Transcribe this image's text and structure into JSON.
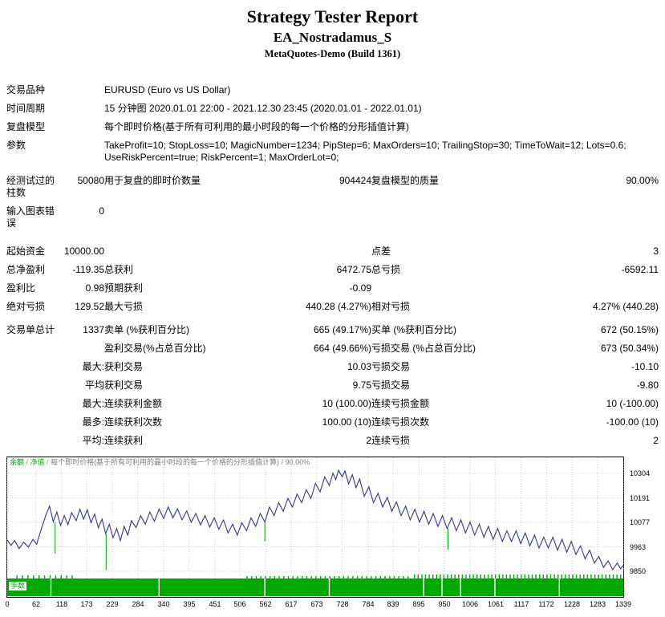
{
  "header": {
    "title": "Strategy Tester Report",
    "subtitle": "EA_Nostradamus_S",
    "build": "MetaQuotes-Demo (Build 1361)"
  },
  "table": {
    "rows": [
      {
        "cells": [
          {
            "t": "交易品种"
          },
          {
            "t": ""
          },
          {
            "t": "EURUSD (Euro vs US Dollar)",
            "s": 4
          }
        ]
      },
      {
        "cells": [
          {
            "t": "时间周期"
          },
          {
            "t": ""
          },
          {
            "t": "15 分钟图 2020.01.01 22:00 - 2021.12.30 23:45 (2020.01.01 - 2022.01.01)",
            "s": 4
          }
        ]
      },
      {
        "cells": [
          {
            "t": "复盘模型"
          },
          {
            "t": ""
          },
          {
            "t": "每个即时价格(基于所有可利用的最小时段的每一个价格的分形插值计算)",
            "s": 4
          }
        ]
      },
      {
        "cells": [
          {
            "t": "参数"
          },
          {
            "t": ""
          },
          {
            "t": "TakeProfit=10; StopLoss=10; MagicNumber=1234; PipStep=6; MaxOrders=10; TrailingStop=30; TimeToWait=12; Lots=0.6; UseRiskPercent=true; RiskPercent=1; MaxOrderLot=0;",
            "s": 4
          }
        ]
      },
      {
        "gap": "sm",
        "cells": [
          {
            "t": "经测试过的柱数"
          },
          {
            "t": "50080",
            "a": "r"
          },
          {
            "t": "用于复盘的即时价数量"
          },
          {
            "t": "904424",
            "a": "r"
          },
          {
            "t": "复盘模型的质量"
          },
          {
            "t": "90.00%",
            "a": "r"
          }
        ]
      },
      {
        "cells": [
          {
            "t": "输入图表错误"
          },
          {
            "t": "0",
            "a": "r"
          },
          {
            "t": "",
            "s": 4
          }
        ]
      },
      {
        "gap": "lg",
        "cells": [
          {
            "t": "起始资金"
          },
          {
            "t": "10000.00",
            "a": "r"
          },
          {
            "t": ""
          },
          {
            "t": "",
            "a": "r"
          },
          {
            "t": "点差"
          },
          {
            "t": "3",
            "a": "r"
          }
        ]
      },
      {
        "cells": [
          {
            "t": "总净盈利"
          },
          {
            "t": "-119.35",
            "a": "r"
          },
          {
            "t": "总获利"
          },
          {
            "t": "6472.75",
            "a": "r"
          },
          {
            "t": "总亏损"
          },
          {
            "t": "-6592.11",
            "a": "r"
          }
        ]
      },
      {
        "cells": [
          {
            "t": "盈利比"
          },
          {
            "t": "0.98",
            "a": "r"
          },
          {
            "t": "预期获利"
          },
          {
            "t": "-0.09",
            "a": "r"
          },
          {
            "t": ""
          },
          {
            "t": "",
            "a": "r"
          }
        ]
      },
      {
        "cells": [
          {
            "t": "绝对亏损"
          },
          {
            "t": "129.52",
            "a": "r"
          },
          {
            "t": "最大亏损"
          },
          {
            "t": "440.28 (4.27%)",
            "a": "r"
          },
          {
            "t": "相对亏损"
          },
          {
            "t": "4.27% (440.28)",
            "a": "r"
          }
        ]
      },
      {
        "gap": "sm",
        "cells": [
          {
            "t": "交易单总计"
          },
          {
            "t": "1337",
            "a": "r"
          },
          {
            "t": "卖单 (%获利百分比)"
          },
          {
            "t": "665 (49.17%)",
            "a": "r"
          },
          {
            "t": "买单 (%获利百分比)"
          },
          {
            "t": "672 (50.15%)",
            "a": "r"
          }
        ]
      },
      {
        "cells": [
          {
            "t": ""
          },
          {
            "t": ""
          },
          {
            "t": "盈利交易(%占总百分比)"
          },
          {
            "t": "664 (49.66%)",
            "a": "r"
          },
          {
            "t": "亏损交易 (%占总百分比)"
          },
          {
            "t": "673 (50.34%)",
            "a": "r"
          }
        ]
      },
      {
        "cells": [
          {
            "t": ""
          },
          {
            "t": "最大:",
            "a": "r"
          },
          {
            "t": "获利交易"
          },
          {
            "t": "10.03",
            "a": "r"
          },
          {
            "t": "亏损交易"
          },
          {
            "t": "-10.10",
            "a": "r"
          }
        ]
      },
      {
        "cells": [
          {
            "t": ""
          },
          {
            "t": "平均",
            "a": "r"
          },
          {
            "t": "获利交易"
          },
          {
            "t": "9.75",
            "a": "r"
          },
          {
            "t": "亏损交易"
          },
          {
            "t": "-9.80",
            "a": "r"
          }
        ]
      },
      {
        "cells": [
          {
            "t": ""
          },
          {
            "t": "最大:",
            "a": "r"
          },
          {
            "t": "连续获利金额"
          },
          {
            "t": "10 (100.00)",
            "a": "r"
          },
          {
            "t": "连续亏损金额"
          },
          {
            "t": "10 (-100.00)",
            "a": "r"
          }
        ]
      },
      {
        "cells": [
          {
            "t": ""
          },
          {
            "t": "最多:",
            "a": "r"
          },
          {
            "t": "连续获利次数"
          },
          {
            "t": "100.00 (10)",
            "a": "r"
          },
          {
            "t": "连续亏损次数"
          },
          {
            "t": "-100.00 (10)",
            "a": "r"
          }
        ]
      },
      {
        "cells": [
          {
            "t": ""
          },
          {
            "t": "平均:",
            "a": "r"
          },
          {
            "t": "连续获利"
          },
          {
            "t": "2",
            "a": "r"
          },
          {
            "t": "连续亏损"
          },
          {
            "t": "2",
            "a": "r"
          }
        ]
      }
    ]
  },
  "chart_data": {
    "type": "line",
    "legend": [
      {
        "text": "余额",
        "color": "#009000"
      },
      {
        "text": "净值",
        "color": "#00C000"
      },
      {
        "text": "每个即时价格(基于所有可利用的最小时段的每一个价格的分形插值计算)",
        "color": "#808080"
      },
      {
        "text": "90.00%",
        "color": "#808080"
      }
    ],
    "separator": " / ",
    "y_ticks": [
      10304,
      10191,
      10077,
      9963,
      9850
    ],
    "x_ticks": [
      0,
      62,
      118,
      173,
      229,
      284,
      340,
      395,
      451,
      506,
      562,
      617,
      673,
      728,
      784,
      839,
      895,
      950,
      1006,
      1061,
      1117,
      1172,
      1228,
      1283,
      1339
    ],
    "x_max": 1339,
    "balance_color": "#2b3990",
    "equity_color": "#00A000",
    "grid_color": "#cccccc",
    "lots_color": "#00A800",
    "lots_label": "手数",
    "balance_points": [
      [
        0,
        9995
      ],
      [
        8,
        9970
      ],
      [
        16,
        9992
      ],
      [
        26,
        9955
      ],
      [
        36,
        9985
      ],
      [
        46,
        9962
      ],
      [
        56,
        9998
      ],
      [
        64,
        9975
      ],
      [
        74,
        10045
      ],
      [
        84,
        10110
      ],
      [
        92,
        10152
      ],
      [
        100,
        10080
      ],
      [
        108,
        10125
      ],
      [
        116,
        10062
      ],
      [
        124,
        10108
      ],
      [
        132,
        10066
      ],
      [
        140,
        10122
      ],
      [
        150,
        10085
      ],
      [
        158,
        10138
      ],
      [
        166,
        10092
      ],
      [
        174,
        10135
      ],
      [
        182,
        10075
      ],
      [
        190,
        10115
      ],
      [
        198,
        10052
      ],
      [
        206,
        10092
      ],
      [
        214,
        10025
      ],
      [
        222,
        10068
      ],
      [
        230,
        10005
      ],
      [
        238,
        10048
      ],
      [
        246,
        9992
      ],
      [
        254,
        10058
      ],
      [
        262,
        10018
      ],
      [
        270,
        10085
      ],
      [
        280,
        10052
      ],
      [
        290,
        10108
      ],
      [
        300,
        10068
      ],
      [
        310,
        10125
      ],
      [
        320,
        10082
      ],
      [
        330,
        10138
      ],
      [
        340,
        10095
      ],
      [
        350,
        10148
      ],
      [
        360,
        10098
      ],
      [
        370,
        10140
      ],
      [
        380,
        10088
      ],
      [
        390,
        10130
      ],
      [
        400,
        10078
      ],
      [
        410,
        10118
      ],
      [
        420,
        10065
      ],
      [
        430,
        10108
      ],
      [
        440,
        10055
      ],
      [
        450,
        10098
      ],
      [
        460,
        10045
      ],
      [
        470,
        10088
      ],
      [
        480,
        10028
      ],
      [
        490,
        10068
      ],
      [
        500,
        10018
      ],
      [
        510,
        10075
      ],
      [
        520,
        10038
      ],
      [
        530,
        10098
      ],
      [
        540,
        10058
      ],
      [
        550,
        10118
      ],
      [
        560,
        10078
      ],
      [
        570,
        10148
      ],
      [
        580,
        10108
      ],
      [
        590,
        10168
      ],
      [
        600,
        10128
      ],
      [
        610,
        10188
      ],
      [
        620,
        10148
      ],
      [
        630,
        10208
      ],
      [
        640,
        10168
      ],
      [
        650,
        10228
      ],
      [
        660,
        10188
      ],
      [
        670,
        10258
      ],
      [
        680,
        10218
      ],
      [
        690,
        10288
      ],
      [
        700,
        10248
      ],
      [
        708,
        10305
      ],
      [
        714,
        10275
      ],
      [
        720,
        10318
      ],
      [
        728,
        10288
      ],
      [
        734,
        10315
      ],
      [
        742,
        10255
      ],
      [
        750,
        10298
      ],
      [
        758,
        10238
      ],
      [
        766,
        10278
      ],
      [
        776,
        10198
      ],
      [
        786,
        10242
      ],
      [
        796,
        10168
      ],
      [
        806,
        10212
      ],
      [
        816,
        10148
      ],
      [
        826,
        10192
      ],
      [
        836,
        10128
      ],
      [
        846,
        10172
      ],
      [
        856,
        10108
      ],
      [
        866,
        10152
      ],
      [
        876,
        10088
      ],
      [
        886,
        10138
      ],
      [
        896,
        10078
      ],
      [
        906,
        10128
      ],
      [
        916,
        10068
      ],
      [
        926,
        10118
      ],
      [
        936,
        10058
      ],
      [
        946,
        10108
      ],
      [
        956,
        10048
      ],
      [
        966,
        10098
      ],
      [
        976,
        10038
      ],
      [
        986,
        10088
      ],
      [
        996,
        10028
      ],
      [
        1006,
        10078
      ],
      [
        1016,
        10018
      ],
      [
        1026,
        10068
      ],
      [
        1036,
        10008
      ],
      [
        1046,
        10058
      ],
      [
        1056,
        9998
      ],
      [
        1066,
        10048
      ],
      [
        1076,
        9988
      ],
      [
        1086,
        10038
      ],
      [
        1096,
        9988
      ],
      [
        1106,
        10038
      ],
      [
        1116,
        9978
      ],
      [
        1126,
        10028
      ],
      [
        1136,
        9968
      ],
      [
        1146,
        10018
      ],
      [
        1156,
        9958
      ],
      [
        1166,
        10008
      ],
      [
        1176,
        9958
      ],
      [
        1186,
        10008
      ],
      [
        1196,
        9948
      ],
      [
        1206,
        9998
      ],
      [
        1216,
        9938
      ],
      [
        1226,
        9988
      ],
      [
        1236,
        9928
      ],
      [
        1246,
        9968
      ],
      [
        1256,
        9908
      ],
      [
        1266,
        9948
      ],
      [
        1276,
        9888
      ],
      [
        1286,
        9918
      ],
      [
        1296,
        9868
      ],
      [
        1306,
        9898
      ],
      [
        1316,
        9858
      ],
      [
        1326,
        9888
      ],
      [
        1333,
        9862
      ],
      [
        1339,
        9878
      ]
    ],
    "equity_spikes": [
      [
        104,
        10078,
        9932
      ],
      [
        215,
        10025,
        9856
      ],
      [
        560,
        10080,
        9988
      ],
      [
        958,
        10048,
        9950
      ]
    ],
    "lots_band": {
      "teeth": [
        {
          "from": 20,
          "to": 150,
          "step": 12,
          "h": 4
        },
        {
          "from": 520,
          "to": 876,
          "step": 10,
          "h": 3
        },
        {
          "from": 884,
          "to": 1336,
          "step": 8,
          "h": 5
        }
      ],
      "gaps": [
        95,
        330,
        560,
        700,
        905,
        945,
        985,
        1060,
        1200
      ]
    }
  }
}
